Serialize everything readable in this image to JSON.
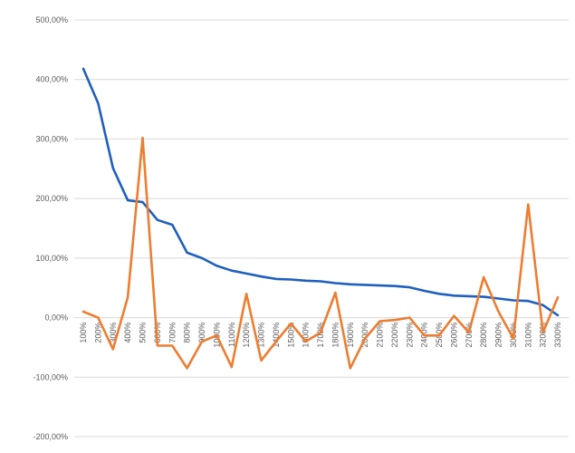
{
  "chart_data": {
    "type": "line",
    "title": "",
    "xlabel": "",
    "ylabel": "",
    "ylim": [
      -200,
      500
    ],
    "yticks": [
      -200,
      -100,
      0,
      100,
      200,
      300,
      400,
      500
    ],
    "ytick_labels": [
      "-200,00%",
      "-100,00%",
      "0,00%",
      "100,00%",
      "200,00%",
      "300,00%",
      "400,00%",
      "500,00%"
    ],
    "grid": true,
    "categories": [
      "100%",
      "200%",
      "300%",
      "400%",
      "500%",
      "600%",
      "700%",
      "800%",
      "900%",
      "1000%",
      "1100%",
      "1200%",
      "1300%",
      "1400%",
      "1500%",
      "1600%",
      "1700%",
      "1800%",
      "1900%",
      "2000%",
      "2100%",
      "2200%",
      "2300%",
      "2400%",
      "2500%",
      "2600%",
      "2700%",
      "2800%",
      "2900%",
      "3000%",
      "3100%",
      "3200%",
      "3300%"
    ],
    "series": [
      {
        "color": "#1f5fbf",
        "values": [
          418,
          360,
          251,
          197,
          194,
          164,
          156,
          109,
          100,
          87,
          79,
          74,
          69,
          65,
          64,
          62,
          61,
          58,
          56,
          55,
          54,
          53,
          51,
          45,
          40,
          37,
          36,
          35,
          32,
          29,
          28,
          21,
          4
        ]
      },
      {
        "color": "#ed7d31",
        "values": [
          10,
          0,
          -53,
          34,
          302,
          -47,
          -47,
          -85,
          -40,
          -30,
          -83,
          40,
          -72,
          -40,
          -10,
          -40,
          -25,
          42,
          -85,
          -35,
          -6,
          -4,
          0,
          -30,
          -30,
          3,
          -25,
          68,
          10,
          -35,
          190,
          -25,
          34
        ]
      }
    ]
  }
}
